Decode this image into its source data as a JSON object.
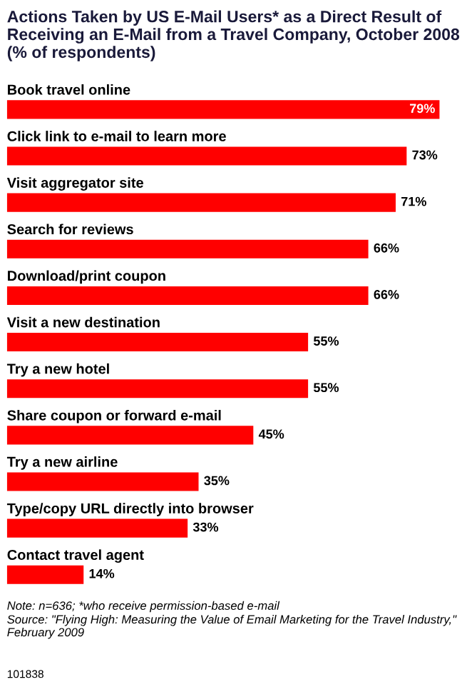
{
  "chart_data": {
    "type": "bar",
    "orientation": "horizontal",
    "title": "Actions Taken by US E-Mail Users* as a Direct Result of Receiving an E-Mail from a Travel Company, October 2008 (% of respondents)",
    "categories": [
      "Book travel online",
      "Click link to e-mail to learn more",
      "Visit aggregator site",
      "Search for reviews",
      "Download/print coupon",
      "Visit a new destination",
      "Try a new hotel",
      "Share coupon or forward e-mail",
      "Try a new airline",
      "Type/copy URL directly into browser",
      "Contact travel agent"
    ],
    "values": [
      79,
      73,
      71,
      66,
      66,
      55,
      55,
      45,
      35,
      33,
      14
    ],
    "value_labels": [
      "79%",
      "73%",
      "71%",
      "66%",
      "66%",
      "55%",
      "55%",
      "45%",
      "35%",
      "33%",
      "14%"
    ],
    "color": "#ff0000",
    "annotations": [
      "Note: n=636; *who receive permission-based e-mail",
      "Source: \"Flying High: Measuring the Value of Email Marketing for the Travel Industry,\" February 2009",
      "101838"
    ]
  }
}
